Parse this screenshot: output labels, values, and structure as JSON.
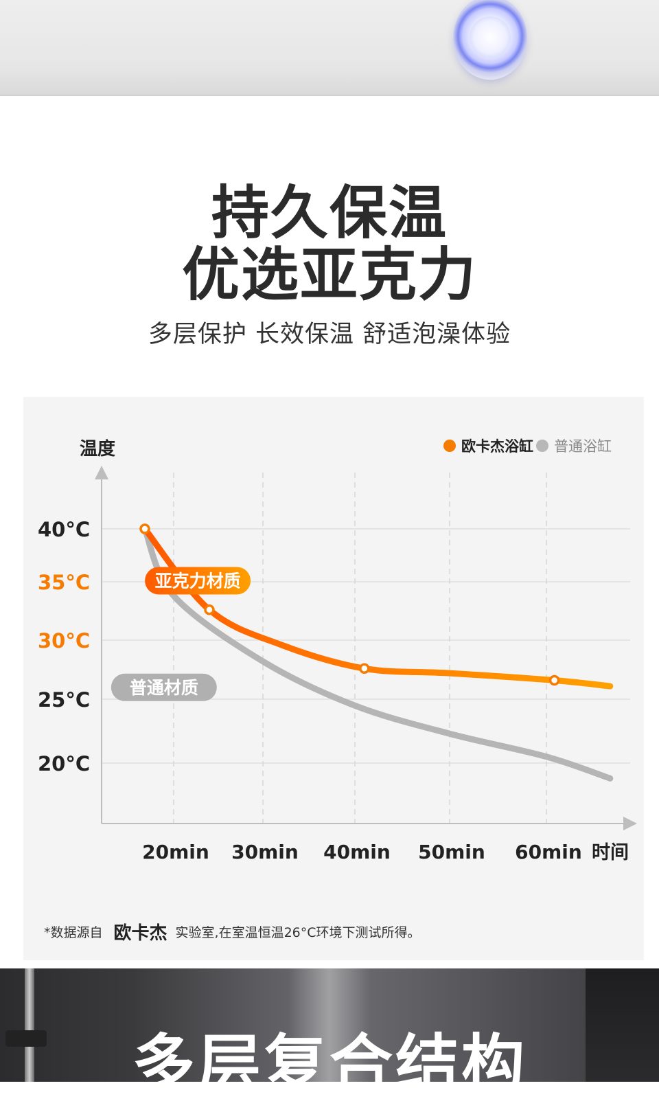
{
  "hero": {
    "title_line1": "持久保温",
    "title_line2": "优选亚克力",
    "subtitle": "多层保护 长效保温 舒适泡澡体验"
  },
  "chart_data": {
    "type": "line",
    "ylabel": "温度",
    "xlabel": "时间",
    "y_ticks": [
      "40°C",
      "35°C",
      "30°C",
      "25°C",
      "20°C"
    ],
    "y_tick_colors": [
      "#222222",
      "#f57c00",
      "#f57c00",
      "#222222",
      "#222222"
    ],
    "x_ticks": [
      "20min",
      "30min",
      "40min",
      "50min",
      "60min"
    ],
    "grid": true,
    "legend_placement": "top-right",
    "series": [
      {
        "name": "欧卡杰浴缸",
        "label": "亚克力材质",
        "color": "#f57c00",
        "points": [
          [
            12,
            40
          ],
          [
            24,
            32.6
          ],
          [
            32,
            29.6
          ],
          [
            41,
            27.6
          ],
          [
            50,
            27.2
          ],
          [
            61,
            26.6
          ],
          [
            68,
            26.1
          ]
        ],
        "markers": [
          [
            12,
            40
          ],
          [
            24,
            32.6
          ],
          [
            41,
            27.6
          ],
          [
            61,
            26.6
          ]
        ]
      },
      {
        "name": "普通浴缸",
        "label": "普通材质",
        "color": "#b5b5b5",
        "points": [
          [
            12,
            40
          ],
          [
            20,
            33.8
          ],
          [
            30,
            28.2
          ],
          [
            40,
            24.5
          ],
          [
            50,
            22.3
          ],
          [
            60,
            20.5
          ],
          [
            68,
            18.8
          ]
        ]
      }
    ]
  },
  "footnote": {
    "prefix": "*数据源自",
    "brand": "欧卡杰",
    "suffix": "实验室,在室温恒温26°C环境下测试所得。"
  },
  "bottom_banner": {
    "title": "多层复合结构"
  },
  "colors": {
    "accent": "#f57c00",
    "gray_series": "#b5b5b5",
    "card_bg": "#f4f4f4"
  }
}
